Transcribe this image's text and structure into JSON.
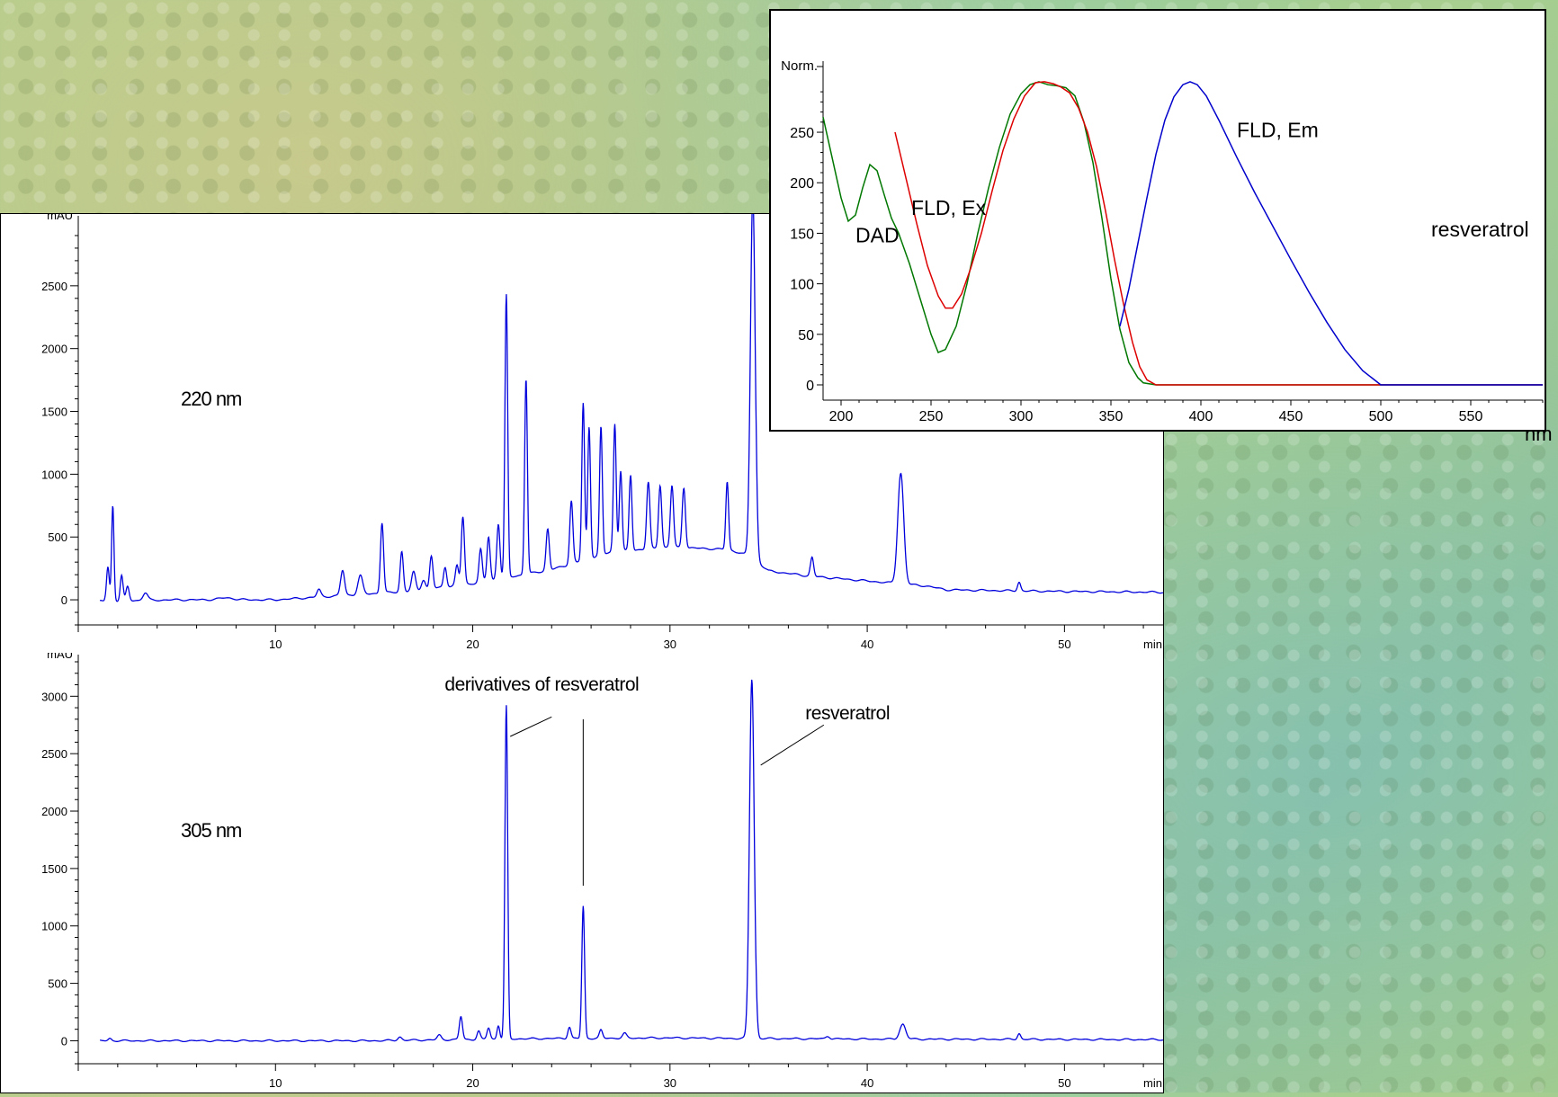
{
  "chart_data": [
    {
      "type": "line",
      "name": "chromatogram-220",
      "ylabel": "mAU",
      "xunit": "min",
      "annotation": "220 nm",
      "xlim": [
        0,
        55
      ],
      "ylim": [
        -200,
        3000
      ],
      "xticks": [
        10,
        20,
        30,
        40,
        50
      ],
      "yticks": [
        0,
        500,
        1000,
        1500,
        2000,
        2500
      ],
      "color": "#0000dd",
      "baseline": [
        [
          0,
          -10
        ],
        [
          1,
          -10
        ],
        [
          5,
          0
        ],
        [
          10,
          0
        ],
        [
          12,
          20
        ],
        [
          14,
          40
        ],
        [
          17,
          70
        ],
        [
          20,
          130
        ],
        [
          24,
          240
        ],
        [
          27,
          380
        ],
        [
          30,
          420
        ],
        [
          33,
          400
        ],
        [
          34,
          350
        ],
        [
          35,
          230
        ],
        [
          37,
          190
        ],
        [
          40,
          150
        ],
        [
          41.5,
          130
        ],
        [
          43,
          110
        ],
        [
          44,
          80
        ],
        [
          48,
          70
        ],
        [
          55,
          60
        ]
      ],
      "peaks": [
        [
          1.5,
          270,
          0.07
        ],
        [
          1.75,
          760,
          0.06
        ],
        [
          2.2,
          200,
          0.07
        ],
        [
          2.5,
          110,
          0.08
        ],
        [
          3.4,
          60,
          0.12
        ],
        [
          7.5,
          15,
          0.4
        ],
        [
          12.2,
          60,
          0.1
        ],
        [
          13.4,
          200,
          0.1
        ],
        [
          14.3,
          150,
          0.12
        ],
        [
          15.4,
          560,
          0.08
        ],
        [
          16.4,
          320,
          0.08
        ],
        [
          17,
          150,
          0.1
        ],
        [
          17.5,
          80,
          0.1
        ],
        [
          17.9,
          260,
          0.08
        ],
        [
          18.6,
          160,
          0.08
        ],
        [
          19.2,
          160,
          0.08
        ],
        [
          19.5,
          540,
          0.08
        ],
        [
          20.4,
          260,
          0.08
        ],
        [
          20.8,
          350,
          0.08
        ],
        [
          21.3,
          440,
          0.08
        ],
        [
          21.7,
          2250,
          0.07
        ],
        [
          22.7,
          1560,
          0.07
        ],
        [
          23.8,
          330,
          0.08
        ],
        [
          25,
          500,
          0.08
        ],
        [
          25.6,
          1250,
          0.07
        ],
        [
          25.9,
          1050,
          0.07
        ],
        [
          26.5,
          1020,
          0.07
        ],
        [
          27.2,
          1020,
          0.07
        ],
        [
          27.5,
          640,
          0.07
        ],
        [
          28,
          600,
          0.07
        ],
        [
          28.9,
          530,
          0.08
        ],
        [
          29.5,
          500,
          0.08
        ],
        [
          30.1,
          490,
          0.08
        ],
        [
          30.7,
          480,
          0.08
        ],
        [
          32.9,
          540,
          0.07
        ],
        [
          34.2,
          2900,
          0.12
        ],
        [
          37.2,
          150,
          0.08
        ],
        [
          41.7,
          880,
          0.15
        ],
        [
          47.7,
          70,
          0.08
        ]
      ]
    },
    {
      "type": "line",
      "name": "chromatogram-305",
      "ylabel": "mAU",
      "xunit": "min",
      "annotation": "305 nm",
      "xlim": [
        0,
        55
      ],
      "ylim": [
        -200,
        3300
      ],
      "xticks": [
        10,
        20,
        30,
        40,
        50
      ],
      "yticks": [
        0,
        500,
        1000,
        1500,
        2000,
        2500,
        3000
      ],
      "color": "#0000dd",
      "labels": [
        {
          "text": "derivatives of resveratrol",
          "x": 23.5,
          "y": 3050
        },
        {
          "text": "resveratrol",
          "x": 39.0,
          "y": 2800
        }
      ],
      "leaders": [
        [
          [
            21.9,
            2650
          ],
          [
            24,
            2820
          ]
        ],
        [
          [
            25.6,
            1350
          ],
          [
            25.6,
            2800
          ]
        ],
        [
          [
            34.6,
            2400
          ],
          [
            37.8,
            2750
          ]
        ]
      ],
      "baseline": [
        [
          0,
          0
        ],
        [
          15,
          0
        ],
        [
          19,
          10
        ],
        [
          24,
          20
        ],
        [
          30,
          25
        ],
        [
          34,
          20
        ],
        [
          40,
          15
        ],
        [
          55,
          10
        ]
      ],
      "peaks": [
        [
          1.6,
          20,
          0.08
        ],
        [
          16.3,
          30,
          0.1
        ],
        [
          18.3,
          40,
          0.1
        ],
        [
          19.4,
          200,
          0.08
        ],
        [
          20.3,
          70,
          0.08
        ],
        [
          20.8,
          100,
          0.08
        ],
        [
          21.3,
          120,
          0.07
        ],
        [
          21.7,
          2900,
          0.07
        ],
        [
          24.9,
          100,
          0.08
        ],
        [
          25.6,
          1150,
          0.07
        ],
        [
          26.5,
          70,
          0.08
        ],
        [
          27.7,
          40,
          0.1
        ],
        [
          34.15,
          3130,
          0.12
        ],
        [
          38,
          25,
          0.1
        ],
        [
          41.8,
          130,
          0.15
        ],
        [
          47.7,
          50,
          0.08
        ]
      ]
    },
    {
      "type": "line",
      "name": "spectra-inset",
      "ylabel": "Norm.",
      "xunit": "nm",
      "xlim": [
        190,
        590
      ],
      "ylim": [
        -8,
        315
      ],
      "xticks": [
        200,
        250,
        300,
        350,
        400,
        450,
        500,
        550
      ],
      "yticks": [
        0,
        50,
        100,
        150,
        200,
        250
      ],
      "labels": [
        {
          "text": "DAD",
          "x": 208,
          "y": 141
        },
        {
          "text": "FLD, Ex",
          "x": 239,
          "y": 168
        },
        {
          "text": "FLD, Em",
          "x": 420,
          "y": 245
        },
        {
          "text": "resveratrol",
          "x": 528,
          "y": 147
        }
      ],
      "series": [
        {
          "name": "DAD",
          "color": "#007700",
          "points": [
            [
              190,
              265
            ],
            [
              195,
              225
            ],
            [
              200,
              185
            ],
            [
              204,
              162
            ],
            [
              208,
              168
            ],
            [
              212,
              195
            ],
            [
              216,
              218
            ],
            [
              220,
              212
            ],
            [
              224,
              188
            ],
            [
              228,
              165
            ],
            [
              232,
              150
            ],
            [
              238,
              120
            ],
            [
              244,
              85
            ],
            [
              250,
              50
            ],
            [
              254,
              32
            ],
            [
              258,
              35
            ],
            [
              264,
              58
            ],
            [
              270,
              100
            ],
            [
              276,
              150
            ],
            [
              282,
              195
            ],
            [
              288,
              235
            ],
            [
              294,
              268
            ],
            [
              300,
              288
            ],
            [
              305,
              297
            ],
            [
              310,
              300
            ],
            [
              315,
              297
            ],
            [
              320,
              296
            ],
            [
              325,
              294
            ],
            [
              330,
              286
            ],
            [
              335,
              260
            ],
            [
              340,
              220
            ],
            [
              345,
              165
            ],
            [
              350,
              105
            ],
            [
              355,
              55
            ],
            [
              360,
              22
            ],
            [
              365,
              7
            ],
            [
              368,
              2
            ],
            [
              375,
              0
            ],
            [
              590,
              0
            ]
          ]
        },
        {
          "name": "FLD, Ex",
          "color": "#dd0000",
          "points": [
            [
              230,
              250
            ],
            [
              236,
              205
            ],
            [
              242,
              160
            ],
            [
              248,
              118
            ],
            [
              254,
              88
            ],
            [
              258,
              76
            ],
            [
              262,
              76
            ],
            [
              267,
              90
            ],
            [
              272,
              115
            ],
            [
              278,
              150
            ],
            [
              284,
              192
            ],
            [
              290,
              232
            ],
            [
              296,
              263
            ],
            [
              302,
              286
            ],
            [
              308,
              299
            ],
            [
              313,
              300
            ],
            [
              318,
              298
            ],
            [
              322,
              295
            ],
            [
              327,
              289
            ],
            [
              332,
              274
            ],
            [
              337,
              250
            ],
            [
              342,
              216
            ],
            [
              347,
              172
            ],
            [
              352,
              124
            ],
            [
              357,
              80
            ],
            [
              362,
              42
            ],
            [
              366,
              18
            ],
            [
              370,
              5
            ],
            [
              375,
              0
            ],
            [
              590,
              0
            ]
          ]
        },
        {
          "name": "FLD, Em",
          "color": "#0000cc",
          "points": [
            [
              355,
              58
            ],
            [
              360,
              95
            ],
            [
              365,
              140
            ],
            [
              370,
              185
            ],
            [
              375,
              228
            ],
            [
              380,
              262
            ],
            [
              385,
              285
            ],
            [
              390,
              297
            ],
            [
              394,
              300
            ],
            [
              398,
              297
            ],
            [
              403,
              286
            ],
            [
              410,
              262
            ],
            [
              420,
              225
            ],
            [
              430,
              190
            ],
            [
              440,
              157
            ],
            [
              450,
              124
            ],
            [
              460,
              92
            ],
            [
              470,
              62
            ],
            [
              480,
              35
            ],
            [
              490,
              14
            ],
            [
              500,
              0
            ],
            [
              590,
              0
            ]
          ]
        }
      ]
    }
  ]
}
